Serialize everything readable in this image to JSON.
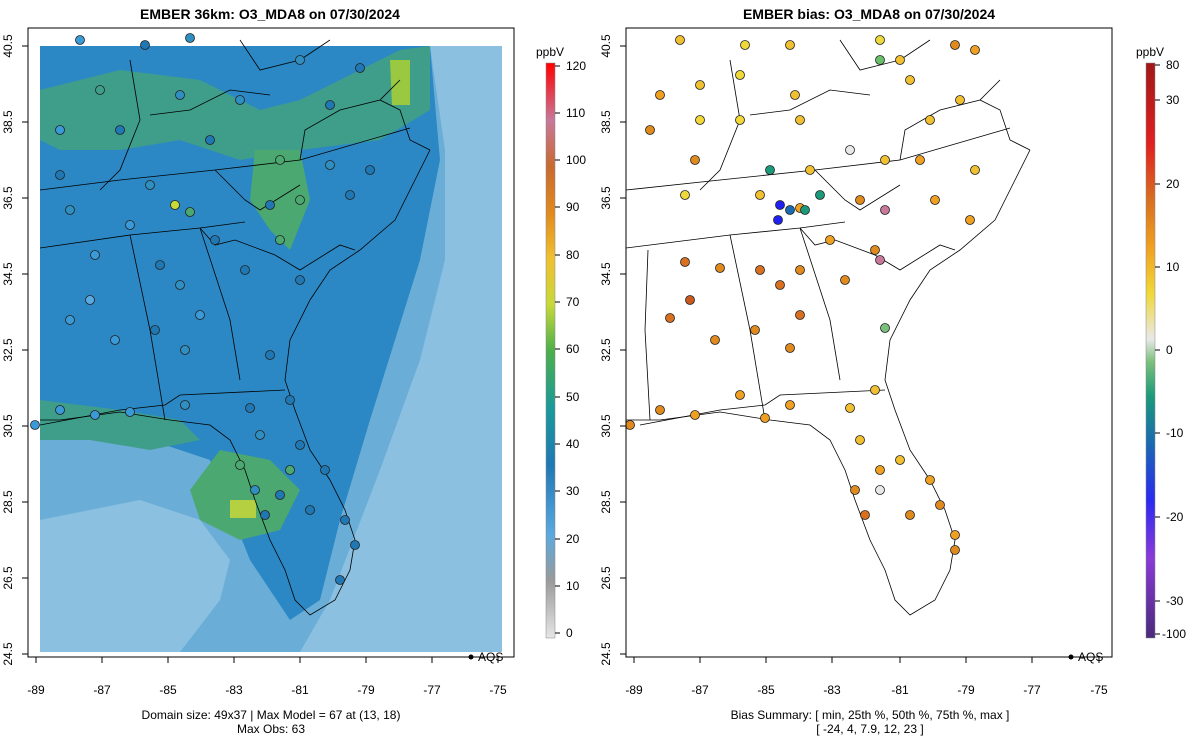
{
  "left_panel": {
    "title": "EMBER 36km: O3_MDA8 on 07/30/2024",
    "x_ticks": [
      "-89",
      "-87",
      "-85",
      "-83",
      "-81",
      "-79",
      "-77",
      "-75"
    ],
    "y_ticks": [
      "40.5",
      "38.5",
      "36.5",
      "34.5",
      "32.5",
      "30.5",
      "28.5",
      "26.5",
      "24.5"
    ],
    "legend_label": "AQS",
    "colorbar_unit": "ppbV",
    "colorbar_ticks": [
      "120",
      "110",
      "100",
      "90",
      "80",
      "70",
      "60",
      "50",
      "40",
      "30",
      "20",
      "10",
      "0"
    ],
    "footer_line1": "Domain size: 49x37 | Max Model = 67 at (13, 18)",
    "footer_line2": "Max Obs: 63"
  },
  "right_panel": {
    "title": "EMBER bias: O3_MDA8 on 07/30/2024",
    "x_ticks": [
      "-89",
      "-87",
      "-85",
      "-83",
      "-81",
      "-79",
      "-77",
      "-75"
    ],
    "y_ticks": [
      "40.5",
      "38.5",
      "36.5",
      "34.5",
      "32.5",
      "30.5",
      "28.5",
      "26.5",
      "24.5"
    ],
    "legend_label": "AQS",
    "colorbar_unit": "ppbV",
    "colorbar_ticks": [
      "80",
      "30",
      "20",
      "10",
      "0",
      "-10",
      "-20",
      "-30",
      "-100"
    ],
    "footer_line1": "Bias Summary: [ min, 25th %, 50th %, 75th %, max ]",
    "footer_line2": "[ -24,  4,  7.9,  12,  23 ]"
  },
  "colors": {
    "conc_scale": [
      "#d9d9d9",
      "#9a9a9a",
      "#5aa9e0",
      "#1f78b4",
      "#1f8fa0",
      "#4daf4a",
      "#c8d93a",
      "#f0c030",
      "#e08a1e",
      "#c85a1e",
      "#c8789a",
      "#e03030",
      "#ff0000"
    ],
    "bias_scale": [
      "#5a2a8a",
      "#8a3ad8",
      "#2020f0",
      "#1a6ab0",
      "#1a9a7a",
      "#6ac06a",
      "#e8e8e8",
      "#f0d838",
      "#f0a020",
      "#d87020",
      "#c84a20",
      "#e02020",
      "#b01818"
    ]
  }
}
